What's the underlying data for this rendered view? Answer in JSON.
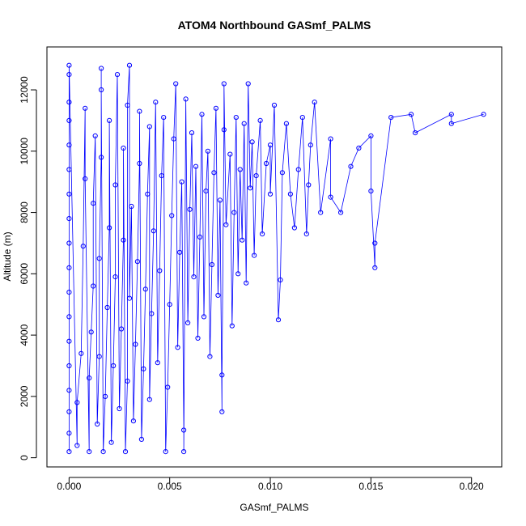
{
  "chart_data": {
    "type": "scatter",
    "title": "ATOM4 Northbound GASmf_PALMS",
    "xlabel": "GASmf_PALMS",
    "ylabel": "Altitude (m)",
    "xlim": [
      -0.0011,
      0.0215
    ],
    "ylim": [
      -300,
      13400
    ],
    "x_ticks": [
      0.0,
      0.005,
      0.01,
      0.015,
      0.02
    ],
    "x_tick_labels": [
      "0.000",
      "0.005",
      "0.010",
      "0.015",
      "0.020"
    ],
    "y_ticks": [
      0,
      2000,
      4000,
      6000,
      8000,
      10000,
      12000
    ],
    "y_tick_labels": [
      "0",
      "2000",
      "4000",
      "6000",
      "8000",
      "10000",
      "12000"
    ],
    "grid": false,
    "legend": "none",
    "series_color": "#0000ff",
    "marker": "open-circle",
    "connected_by_lines": true,
    "points": [
      {
        "x": 0.0,
        "y": 200
      },
      {
        "x": 0.0,
        "y": 800
      },
      {
        "x": 0.0,
        "y": 1500
      },
      {
        "x": 0.0,
        "y": 2200
      },
      {
        "x": 0.0,
        "y": 3000
      },
      {
        "x": 0.0,
        "y": 3800
      },
      {
        "x": 0.0,
        "y": 4600
      },
      {
        "x": 0.0,
        "y": 5400
      },
      {
        "x": 0.0,
        "y": 6200
      },
      {
        "x": 0.0,
        "y": 7000
      },
      {
        "x": 0.0,
        "y": 7800
      },
      {
        "x": 0.0,
        "y": 8600
      },
      {
        "x": 0.0,
        "y": 9400
      },
      {
        "x": 0.0,
        "y": 10200
      },
      {
        "x": 0.0,
        "y": 11000
      },
      {
        "x": 0.0,
        "y": 11600
      },
      {
        "x": 0.0,
        "y": 12500
      },
      {
        "x": 0.0,
        "y": 12800
      },
      {
        "x": 0.0004,
        "y": 400
      },
      {
        "x": 0.0004,
        "y": 1800
      },
      {
        "x": 0.0006,
        "y": 3400
      },
      {
        "x": 0.0007,
        "y": 6900
      },
      {
        "x": 0.0008,
        "y": 11400
      },
      {
        "x": 0.0008,
        "y": 9100
      },
      {
        "x": 0.001,
        "y": 200
      },
      {
        "x": 0.001,
        "y": 2600
      },
      {
        "x": 0.0011,
        "y": 4100
      },
      {
        "x": 0.0012,
        "y": 5600
      },
      {
        "x": 0.0012,
        "y": 8300
      },
      {
        "x": 0.0013,
        "y": 10500
      },
      {
        "x": 0.0014,
        "y": 1100
      },
      {
        "x": 0.0015,
        "y": 3300
      },
      {
        "x": 0.0015,
        "y": 6500
      },
      {
        "x": 0.0016,
        "y": 9800
      },
      {
        "x": 0.0016,
        "y": 12700
      },
      {
        "x": 0.0016,
        "y": 12000
      },
      {
        "x": 0.0017,
        "y": 200
      },
      {
        "x": 0.0018,
        "y": 2000
      },
      {
        "x": 0.0019,
        "y": 4900
      },
      {
        "x": 0.002,
        "y": 7500
      },
      {
        "x": 0.002,
        "y": 11000
      },
      {
        "x": 0.0021,
        "y": 500
      },
      {
        "x": 0.0022,
        "y": 3000
      },
      {
        "x": 0.0023,
        "y": 5900
      },
      {
        "x": 0.0023,
        "y": 8900
      },
      {
        "x": 0.0024,
        "y": 12500
      },
      {
        "x": 0.0025,
        "y": 1600
      },
      {
        "x": 0.0026,
        "y": 4200
      },
      {
        "x": 0.0027,
        "y": 7100
      },
      {
        "x": 0.0027,
        "y": 10100
      },
      {
        "x": 0.0028,
        "y": 200
      },
      {
        "x": 0.0029,
        "y": 2500
      },
      {
        "x": 0.0029,
        "y": 11500
      },
      {
        "x": 0.003,
        "y": 12800
      },
      {
        "x": 0.003,
        "y": 5200
      },
      {
        "x": 0.0031,
        "y": 8200
      },
      {
        "x": 0.0032,
        "y": 1200
      },
      {
        "x": 0.0033,
        "y": 3700
      },
      {
        "x": 0.0034,
        "y": 6400
      },
      {
        "x": 0.0035,
        "y": 9600
      },
      {
        "x": 0.0035,
        "y": 11300
      },
      {
        "x": 0.0036,
        "y": 600
      },
      {
        "x": 0.0037,
        "y": 2900
      },
      {
        "x": 0.0038,
        "y": 5500
      },
      {
        "x": 0.0039,
        "y": 8600
      },
      {
        "x": 0.004,
        "y": 10800
      },
      {
        "x": 0.004,
        "y": 1900
      },
      {
        "x": 0.0041,
        "y": 4700
      },
      {
        "x": 0.0042,
        "y": 7400
      },
      {
        "x": 0.0043,
        "y": 11600
      },
      {
        "x": 0.0044,
        "y": 3100
      },
      {
        "x": 0.0045,
        "y": 6100
      },
      {
        "x": 0.0046,
        "y": 9200
      },
      {
        "x": 0.0047,
        "y": 11100
      },
      {
        "x": 0.0048,
        "y": 200
      },
      {
        "x": 0.0049,
        "y": 2300
      },
      {
        "x": 0.005,
        "y": 5000
      },
      {
        "x": 0.0051,
        "y": 7900
      },
      {
        "x": 0.0052,
        "y": 10400
      },
      {
        "x": 0.0053,
        "y": 12200
      },
      {
        "x": 0.0054,
        "y": 3600
      },
      {
        "x": 0.0055,
        "y": 6700
      },
      {
        "x": 0.0056,
        "y": 9000
      },
      {
        "x": 0.0057,
        "y": 900
      },
      {
        "x": 0.0057,
        "y": 200
      },
      {
        "x": 0.0058,
        "y": 11700
      },
      {
        "x": 0.0059,
        "y": 4400
      },
      {
        "x": 0.006,
        "y": 8100
      },
      {
        "x": 0.0061,
        "y": 10600
      },
      {
        "x": 0.0062,
        "y": 5900
      },
      {
        "x": 0.0063,
        "y": 9500
      },
      {
        "x": 0.0064,
        "y": 3900
      },
      {
        "x": 0.0065,
        "y": 7200
      },
      {
        "x": 0.0066,
        "y": 11200
      },
      {
        "x": 0.0067,
        "y": 4600
      },
      {
        "x": 0.0068,
        "y": 8700
      },
      {
        "x": 0.0069,
        "y": 10000
      },
      {
        "x": 0.007,
        "y": 3300
      },
      {
        "x": 0.0071,
        "y": 6300
      },
      {
        "x": 0.0072,
        "y": 9300
      },
      {
        "x": 0.0073,
        "y": 11400
      },
      {
        "x": 0.0074,
        "y": 5300
      },
      {
        "x": 0.0075,
        "y": 8400
      },
      {
        "x": 0.0076,
        "y": 1500
      },
      {
        "x": 0.0076,
        "y": 2700
      },
      {
        "x": 0.0077,
        "y": 10700
      },
      {
        "x": 0.0077,
        "y": 12200
      },
      {
        "x": 0.0078,
        "y": 7600
      },
      {
        "x": 0.008,
        "y": 9900
      },
      {
        "x": 0.0081,
        "y": 4300
      },
      {
        "x": 0.0082,
        "y": 8000
      },
      {
        "x": 0.0083,
        "y": 11100
      },
      {
        "x": 0.0084,
        "y": 6000
      },
      {
        "x": 0.0085,
        "y": 9400
      },
      {
        "x": 0.0086,
        "y": 7100
      },
      {
        "x": 0.0087,
        "y": 10900
      },
      {
        "x": 0.0088,
        "y": 5700
      },
      {
        "x": 0.0089,
        "y": 12200
      },
      {
        "x": 0.009,
        "y": 8800
      },
      {
        "x": 0.0091,
        "y": 10300
      },
      {
        "x": 0.0092,
        "y": 6600
      },
      {
        "x": 0.0093,
        "y": 9200
      },
      {
        "x": 0.0095,
        "y": 11000
      },
      {
        "x": 0.0096,
        "y": 7300
      },
      {
        "x": 0.0098,
        "y": 9600
      },
      {
        "x": 0.01,
        "y": 10200
      },
      {
        "x": 0.01,
        "y": 8600
      },
      {
        "x": 0.0102,
        "y": 11500
      },
      {
        "x": 0.0104,
        "y": 4500
      },
      {
        "x": 0.0105,
        "y": 5800
      },
      {
        "x": 0.0106,
        "y": 9300
      },
      {
        "x": 0.0108,
        "y": 10900
      },
      {
        "x": 0.011,
        "y": 8600
      },
      {
        "x": 0.0112,
        "y": 7500
      },
      {
        "x": 0.0114,
        "y": 9400
      },
      {
        "x": 0.0116,
        "y": 11100
      },
      {
        "x": 0.0118,
        "y": 7300
      },
      {
        "x": 0.0119,
        "y": 8900
      },
      {
        "x": 0.012,
        "y": 10200
      },
      {
        "x": 0.0122,
        "y": 11600
      },
      {
        "x": 0.0125,
        "y": 8000
      },
      {
        "x": 0.013,
        "y": 10400
      },
      {
        "x": 0.013,
        "y": 8500
      },
      {
        "x": 0.0135,
        "y": 8000
      },
      {
        "x": 0.014,
        "y": 9500
      },
      {
        "x": 0.0144,
        "y": 10100
      },
      {
        "x": 0.015,
        "y": 10500
      },
      {
        "x": 0.015,
        "y": 8700
      },
      {
        "x": 0.0152,
        "y": 6200
      },
      {
        "x": 0.0152,
        "y": 7000
      },
      {
        "x": 0.016,
        "y": 11100
      },
      {
        "x": 0.017,
        "y": 11200
      },
      {
        "x": 0.0172,
        "y": 10600
      },
      {
        "x": 0.019,
        "y": 11200
      },
      {
        "x": 0.019,
        "y": 10900
      },
      {
        "x": 0.0206,
        "y": 11200
      }
    ]
  }
}
